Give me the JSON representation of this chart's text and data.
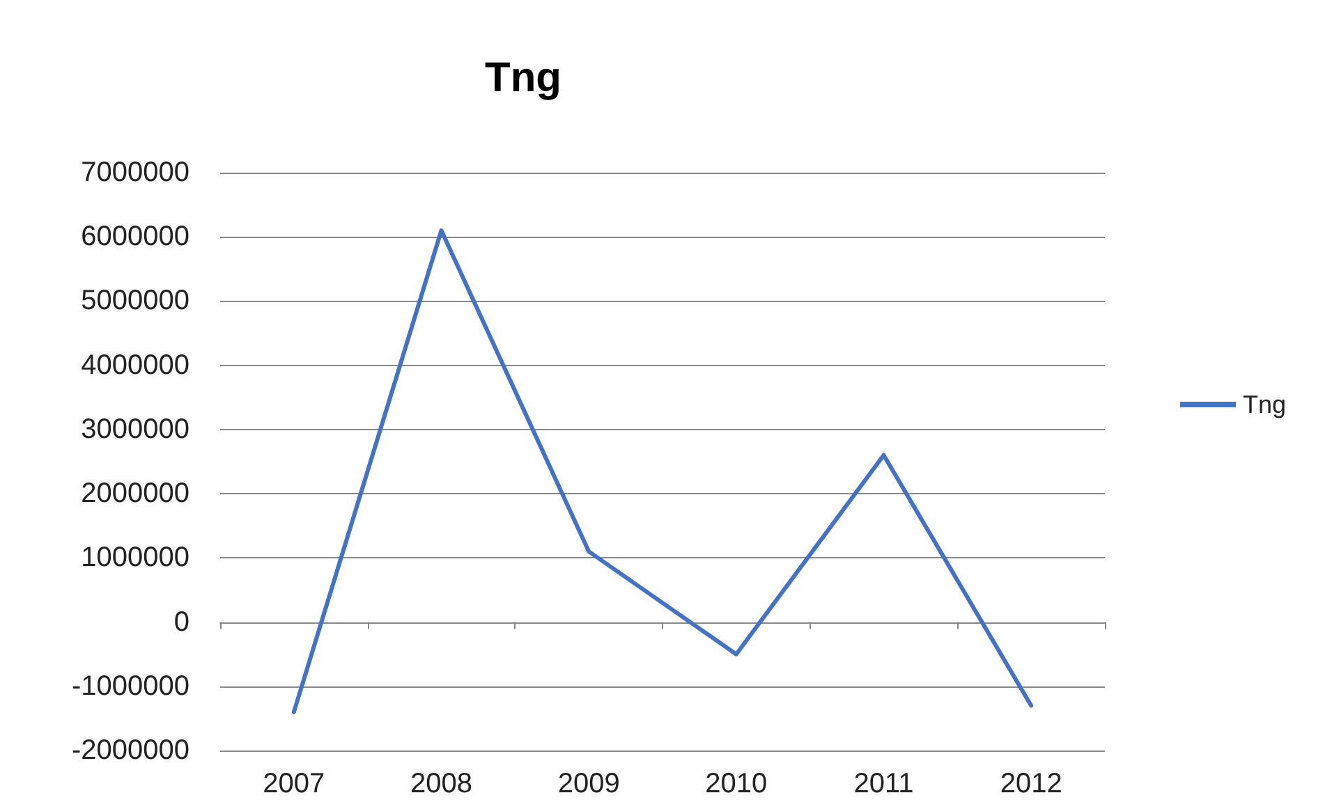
{
  "chart_data": {
    "type": "line",
    "title": "Tng",
    "categories": [
      "2007",
      "2008",
      "2009",
      "2010",
      "2011",
      "2012"
    ],
    "series": [
      {
        "name": "Tng",
        "color": "#4472c4",
        "values": [
          -1400000,
          6100000,
          1100000,
          -500000,
          2600000,
          -1300000
        ]
      }
    ],
    "ylim": [
      -2000000,
      7000000
    ],
    "yticks": [
      -2000000,
      -1000000,
      0,
      1000000,
      2000000,
      3000000,
      4000000,
      5000000,
      6000000,
      7000000
    ],
    "grid": "y",
    "legend": "right",
    "marker": "none",
    "line_style": "solid"
  }
}
